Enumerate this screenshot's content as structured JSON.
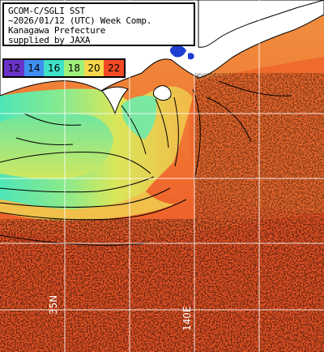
{
  "title": {
    "lines": [
      "GCOM-C/SGLI SST",
      "~2026/01/12 (UTC) Week Comp.",
      "Kanagawa Prefecture",
      "supplied by JAXA"
    ]
  },
  "legend": {
    "entries": [
      {
        "label": "12",
        "color": "#6a32c8"
      },
      {
        "label": "14",
        "color": "#3f8ef0"
      },
      {
        "label": "16",
        "color": "#3fe0c8"
      },
      {
        "label": "18",
        "color": "#9ef07a"
      },
      {
        "label": "20",
        "color": "#f7d84a"
      },
      {
        "label": "22",
        "color": "#f24a24"
      }
    ]
  },
  "grid_labels": {
    "longitude": "140E",
    "latitude": "35N"
  },
  "colors": {
    "land": "#ffffff",
    "no_data": "#000000",
    "grid": "#ffffff",
    "warm_sea": "#f0622a",
    "mid_sea": "#f59a3a",
    "cool_sea": "#c8e85a",
    "cold_sea": "#52e0b0",
    "lake": "#1e3fd0"
  }
}
